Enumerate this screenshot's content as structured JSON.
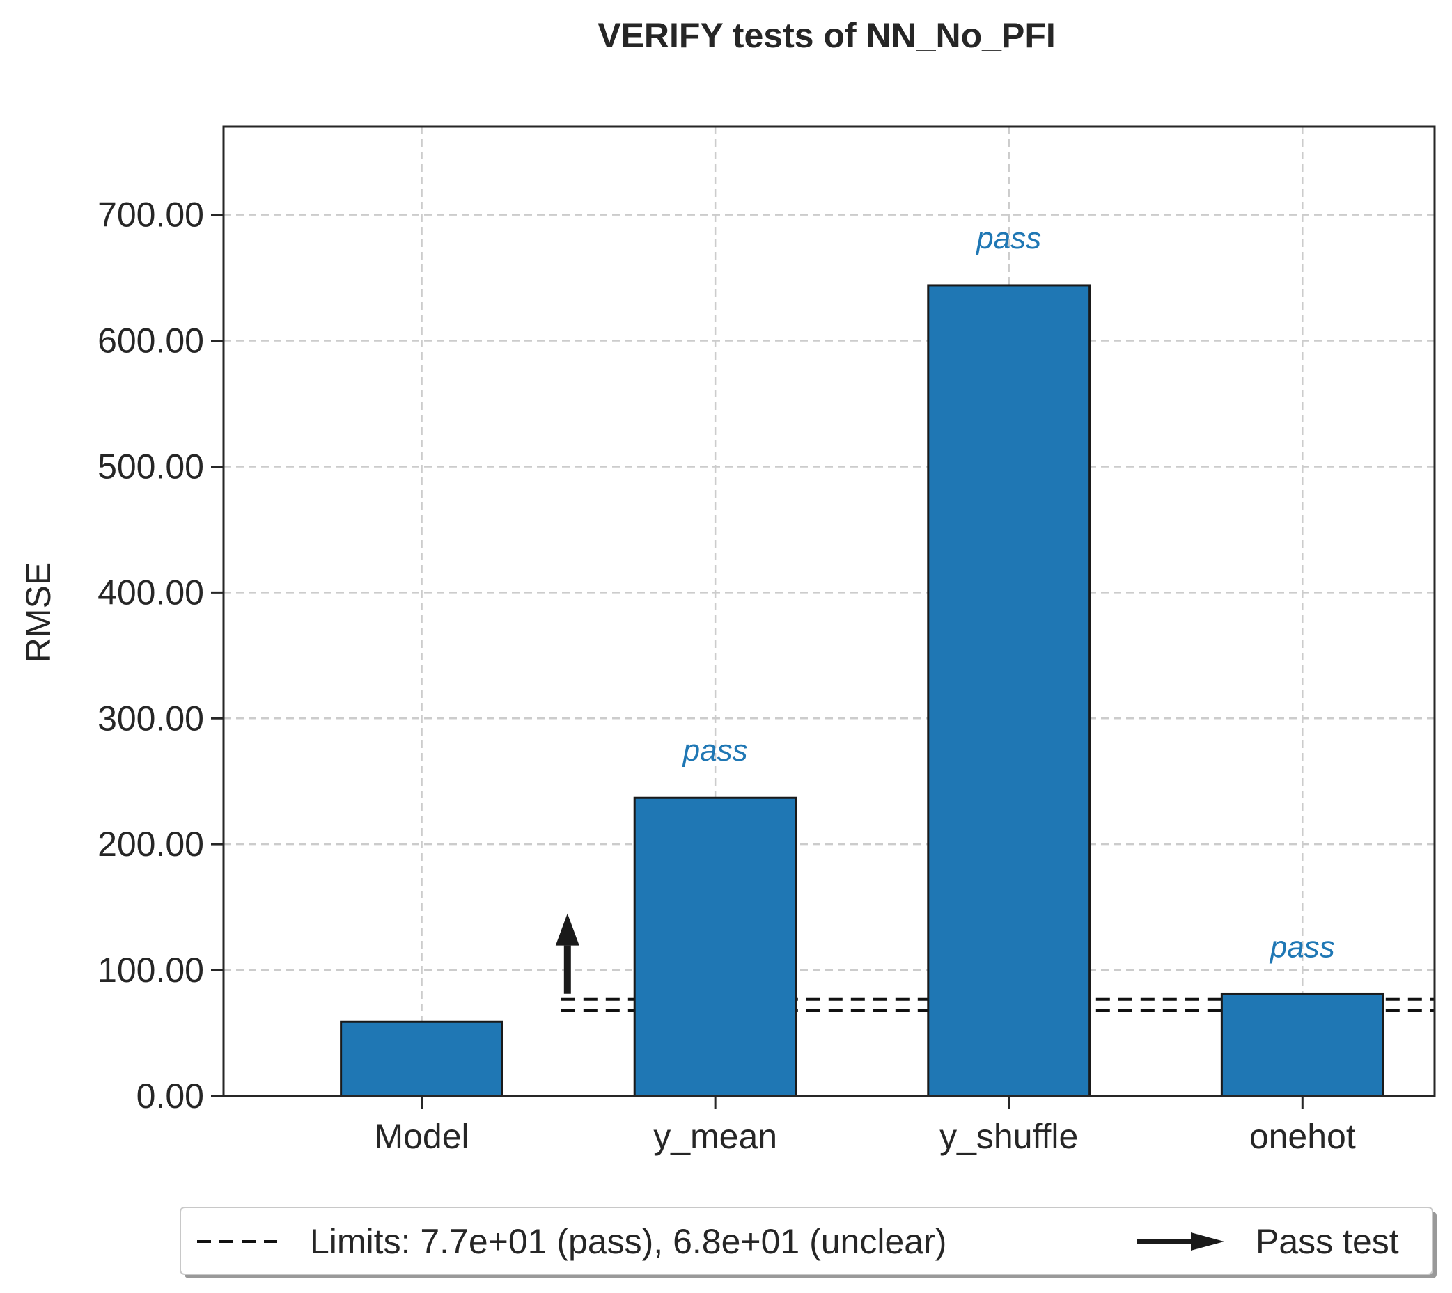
{
  "chart_data": {
    "type": "bar",
    "title": "VERIFY tests of NN_No_PFI",
    "ylabel": "RMSE",
    "xlabel": "",
    "categories": [
      "Model",
      "y_mean",
      "y_shuffle",
      "onehot"
    ],
    "values": [
      59,
      237,
      644,
      81
    ],
    "ylim": [
      0,
      770
    ],
    "yticks": [
      0,
      100,
      200,
      300,
      400,
      500,
      600,
      700
    ],
    "ytick_labels": [
      "0.00",
      "100.00",
      "200.00",
      "300.00",
      "400.00",
      "500.00",
      "600.00",
      "700.00"
    ],
    "grid": true,
    "bar_color": "#1f77b4",
    "annotations": [
      {
        "category": "y_mean",
        "text": "pass"
      },
      {
        "category": "y_shuffle",
        "text": "pass"
      },
      {
        "category": "onehot",
        "text": "pass"
      }
    ],
    "annotation_color": "#1f77b4",
    "limits": {
      "pass": 77,
      "unclear": 68
    },
    "legend": {
      "placement": "bottom",
      "entries": [
        {
          "type": "dashed-line",
          "label": "Limits: 7.7e+01 (pass), 6.8e+01 (unclear)"
        },
        {
          "type": "arrow",
          "label": "Pass test"
        }
      ]
    }
  }
}
